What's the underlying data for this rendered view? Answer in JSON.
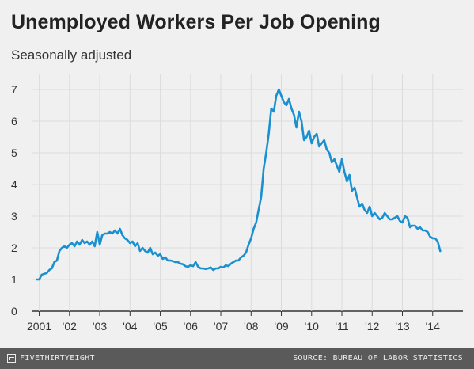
{
  "header": {
    "title": "Unemployed Workers Per Job Opening",
    "subtitle": "Seasonally adjusted"
  },
  "footer": {
    "logo": "FIVETHIRTYEIGHT",
    "source": "SOURCE: BUREAU OF LABOR STATISTICS"
  },
  "colors": {
    "line": "#1a90d0",
    "grid": "#dcdcdc",
    "baseline": "#333333",
    "background": "#f0f0f0",
    "footer": "#5a5a5a"
  },
  "chart_data": {
    "type": "line",
    "title": "Unemployed Workers Per Job Opening",
    "subtitle": "Seasonally adjusted",
    "xlabel": "",
    "ylabel": "",
    "xlim": [
      2000.75,
      2015.0
    ],
    "ylim": [
      0,
      7
    ],
    "grid": true,
    "legend": "none",
    "x_ticks": [
      {
        "value": 2001,
        "label": "2001"
      },
      {
        "value": 2002,
        "label": "'02"
      },
      {
        "value": 2003,
        "label": "'03"
      },
      {
        "value": 2004,
        "label": "'04"
      },
      {
        "value": 2005,
        "label": "'05"
      },
      {
        "value": 2006,
        "label": "'06"
      },
      {
        "value": 2007,
        "label": "'07"
      },
      {
        "value": 2008,
        "label": "'08"
      },
      {
        "value": 2009,
        "label": "'09"
      },
      {
        "value": 2010,
        "label": "'10"
      },
      {
        "value": 2011,
        "label": "'11"
      },
      {
        "value": 2012,
        "label": "'12"
      },
      {
        "value": 2013,
        "label": "'13"
      },
      {
        "value": 2014,
        "label": "'14"
      }
    ],
    "y_ticks": [
      0,
      1,
      2,
      3,
      4,
      5,
      6,
      7
    ],
    "series": [
      {
        "x": [
          2000.917,
          2001.0,
          2001.083,
          2001.167,
          2001.25,
          2001.333,
          2001.417,
          2001.5,
          2001.583,
          2001.667,
          2001.75,
          2001.833,
          2001.917,
          2002.0,
          2002.083,
          2002.167,
          2002.25,
          2002.333,
          2002.417,
          2002.5,
          2002.583,
          2002.667,
          2002.75,
          2002.833,
          2002.917,
          2003.0,
          2003.083,
          2003.167,
          2003.25,
          2003.333,
          2003.417,
          2003.5,
          2003.583,
          2003.667,
          2003.75,
          2003.833,
          2003.917,
          2004.0,
          2004.083,
          2004.167,
          2004.25,
          2004.333,
          2004.417,
          2004.5,
          2004.583,
          2004.667,
          2004.75,
          2004.833,
          2004.917,
          2005.0,
          2005.083,
          2005.167,
          2005.25,
          2005.333,
          2005.417,
          2005.5,
          2005.583,
          2005.667,
          2005.75,
          2005.833,
          2005.917,
          2006.0,
          2006.083,
          2006.167,
          2006.25,
          2006.333,
          2006.417,
          2006.5,
          2006.583,
          2006.667,
          2006.75,
          2006.833,
          2006.917,
          2007.0,
          2007.083,
          2007.167,
          2007.25,
          2007.333,
          2007.417,
          2007.5,
          2007.583,
          2007.667,
          2007.75,
          2007.833,
          2007.917,
          2008.0,
          2008.083,
          2008.167,
          2008.25,
          2008.333,
          2008.417,
          2008.5,
          2008.583,
          2008.667,
          2008.75,
          2008.833,
          2008.917,
          2009.0,
          2009.083,
          2009.167,
          2009.25,
          2009.333,
          2009.417,
          2009.5,
          2009.583,
          2009.667,
          2009.75,
          2009.833,
          2009.917,
          2010.0,
          2010.083,
          2010.167,
          2010.25,
          2010.333,
          2010.417,
          2010.5,
          2010.583,
          2010.667,
          2010.75,
          2010.833,
          2010.917,
          2011.0,
          2011.083,
          2011.167,
          2011.25,
          2011.333,
          2011.417,
          2011.5,
          2011.583,
          2011.667,
          2011.75,
          2011.833,
          2011.917,
          2012.0,
          2012.083,
          2012.167,
          2012.25,
          2012.333,
          2012.417,
          2012.5,
          2012.583,
          2012.667,
          2012.75,
          2012.833,
          2012.917,
          2013.0,
          2013.083,
          2013.167,
          2013.25,
          2013.333,
          2013.417,
          2013.5,
          2013.583,
          2013.667,
          2013.75,
          2013.833,
          2013.917,
          2014.0,
          2014.083,
          2014.167,
          2014.25
        ],
        "values": [
          1.0,
          1.0,
          1.15,
          1.18,
          1.2,
          1.3,
          1.35,
          1.55,
          1.6,
          1.9,
          2.0,
          2.05,
          2.0,
          2.1,
          2.15,
          2.05,
          2.2,
          2.1,
          2.25,
          2.15,
          2.2,
          2.1,
          2.2,
          2.05,
          2.5,
          2.1,
          2.4,
          2.45,
          2.45,
          2.5,
          2.45,
          2.55,
          2.45,
          2.6,
          2.4,
          2.3,
          2.25,
          2.15,
          2.2,
          2.05,
          2.15,
          1.9,
          2.0,
          1.9,
          1.85,
          2.0,
          1.8,
          1.85,
          1.75,
          1.8,
          1.65,
          1.7,
          1.6,
          1.6,
          1.58,
          1.55,
          1.55,
          1.5,
          1.48,
          1.42,
          1.4,
          1.45,
          1.42,
          1.55,
          1.4,
          1.35,
          1.35,
          1.33,
          1.35,
          1.38,
          1.3,
          1.35,
          1.35,
          1.4,
          1.38,
          1.45,
          1.42,
          1.5,
          1.55,
          1.6,
          1.6,
          1.7,
          1.75,
          1.85,
          2.1,
          2.3,
          2.6,
          2.8,
          3.2,
          3.6,
          4.5,
          5.0,
          5.6,
          6.4,
          6.3,
          6.8,
          7.0,
          6.8,
          6.6,
          6.5,
          6.7,
          6.4,
          6.2,
          5.8,
          6.3,
          6.0,
          5.4,
          5.5,
          5.7,
          5.3,
          5.5,
          5.6,
          5.2,
          5.3,
          5.4,
          5.1,
          5.0,
          4.7,
          4.8,
          4.6,
          4.4,
          4.8,
          4.4,
          4.1,
          4.3,
          3.8,
          3.9,
          3.6,
          3.3,
          3.4,
          3.2,
          3.1,
          3.3,
          3.0,
          3.1,
          3.0,
          2.9,
          2.95,
          3.1,
          3.0,
          2.9,
          2.9,
          2.95,
          3.0,
          2.85,
          2.8,
          3.0,
          2.95,
          2.65,
          2.7,
          2.7,
          2.6,
          2.65,
          2.55,
          2.55,
          2.5,
          2.35,
          2.3,
          2.3,
          2.2,
          1.9
        ]
      }
    ]
  }
}
